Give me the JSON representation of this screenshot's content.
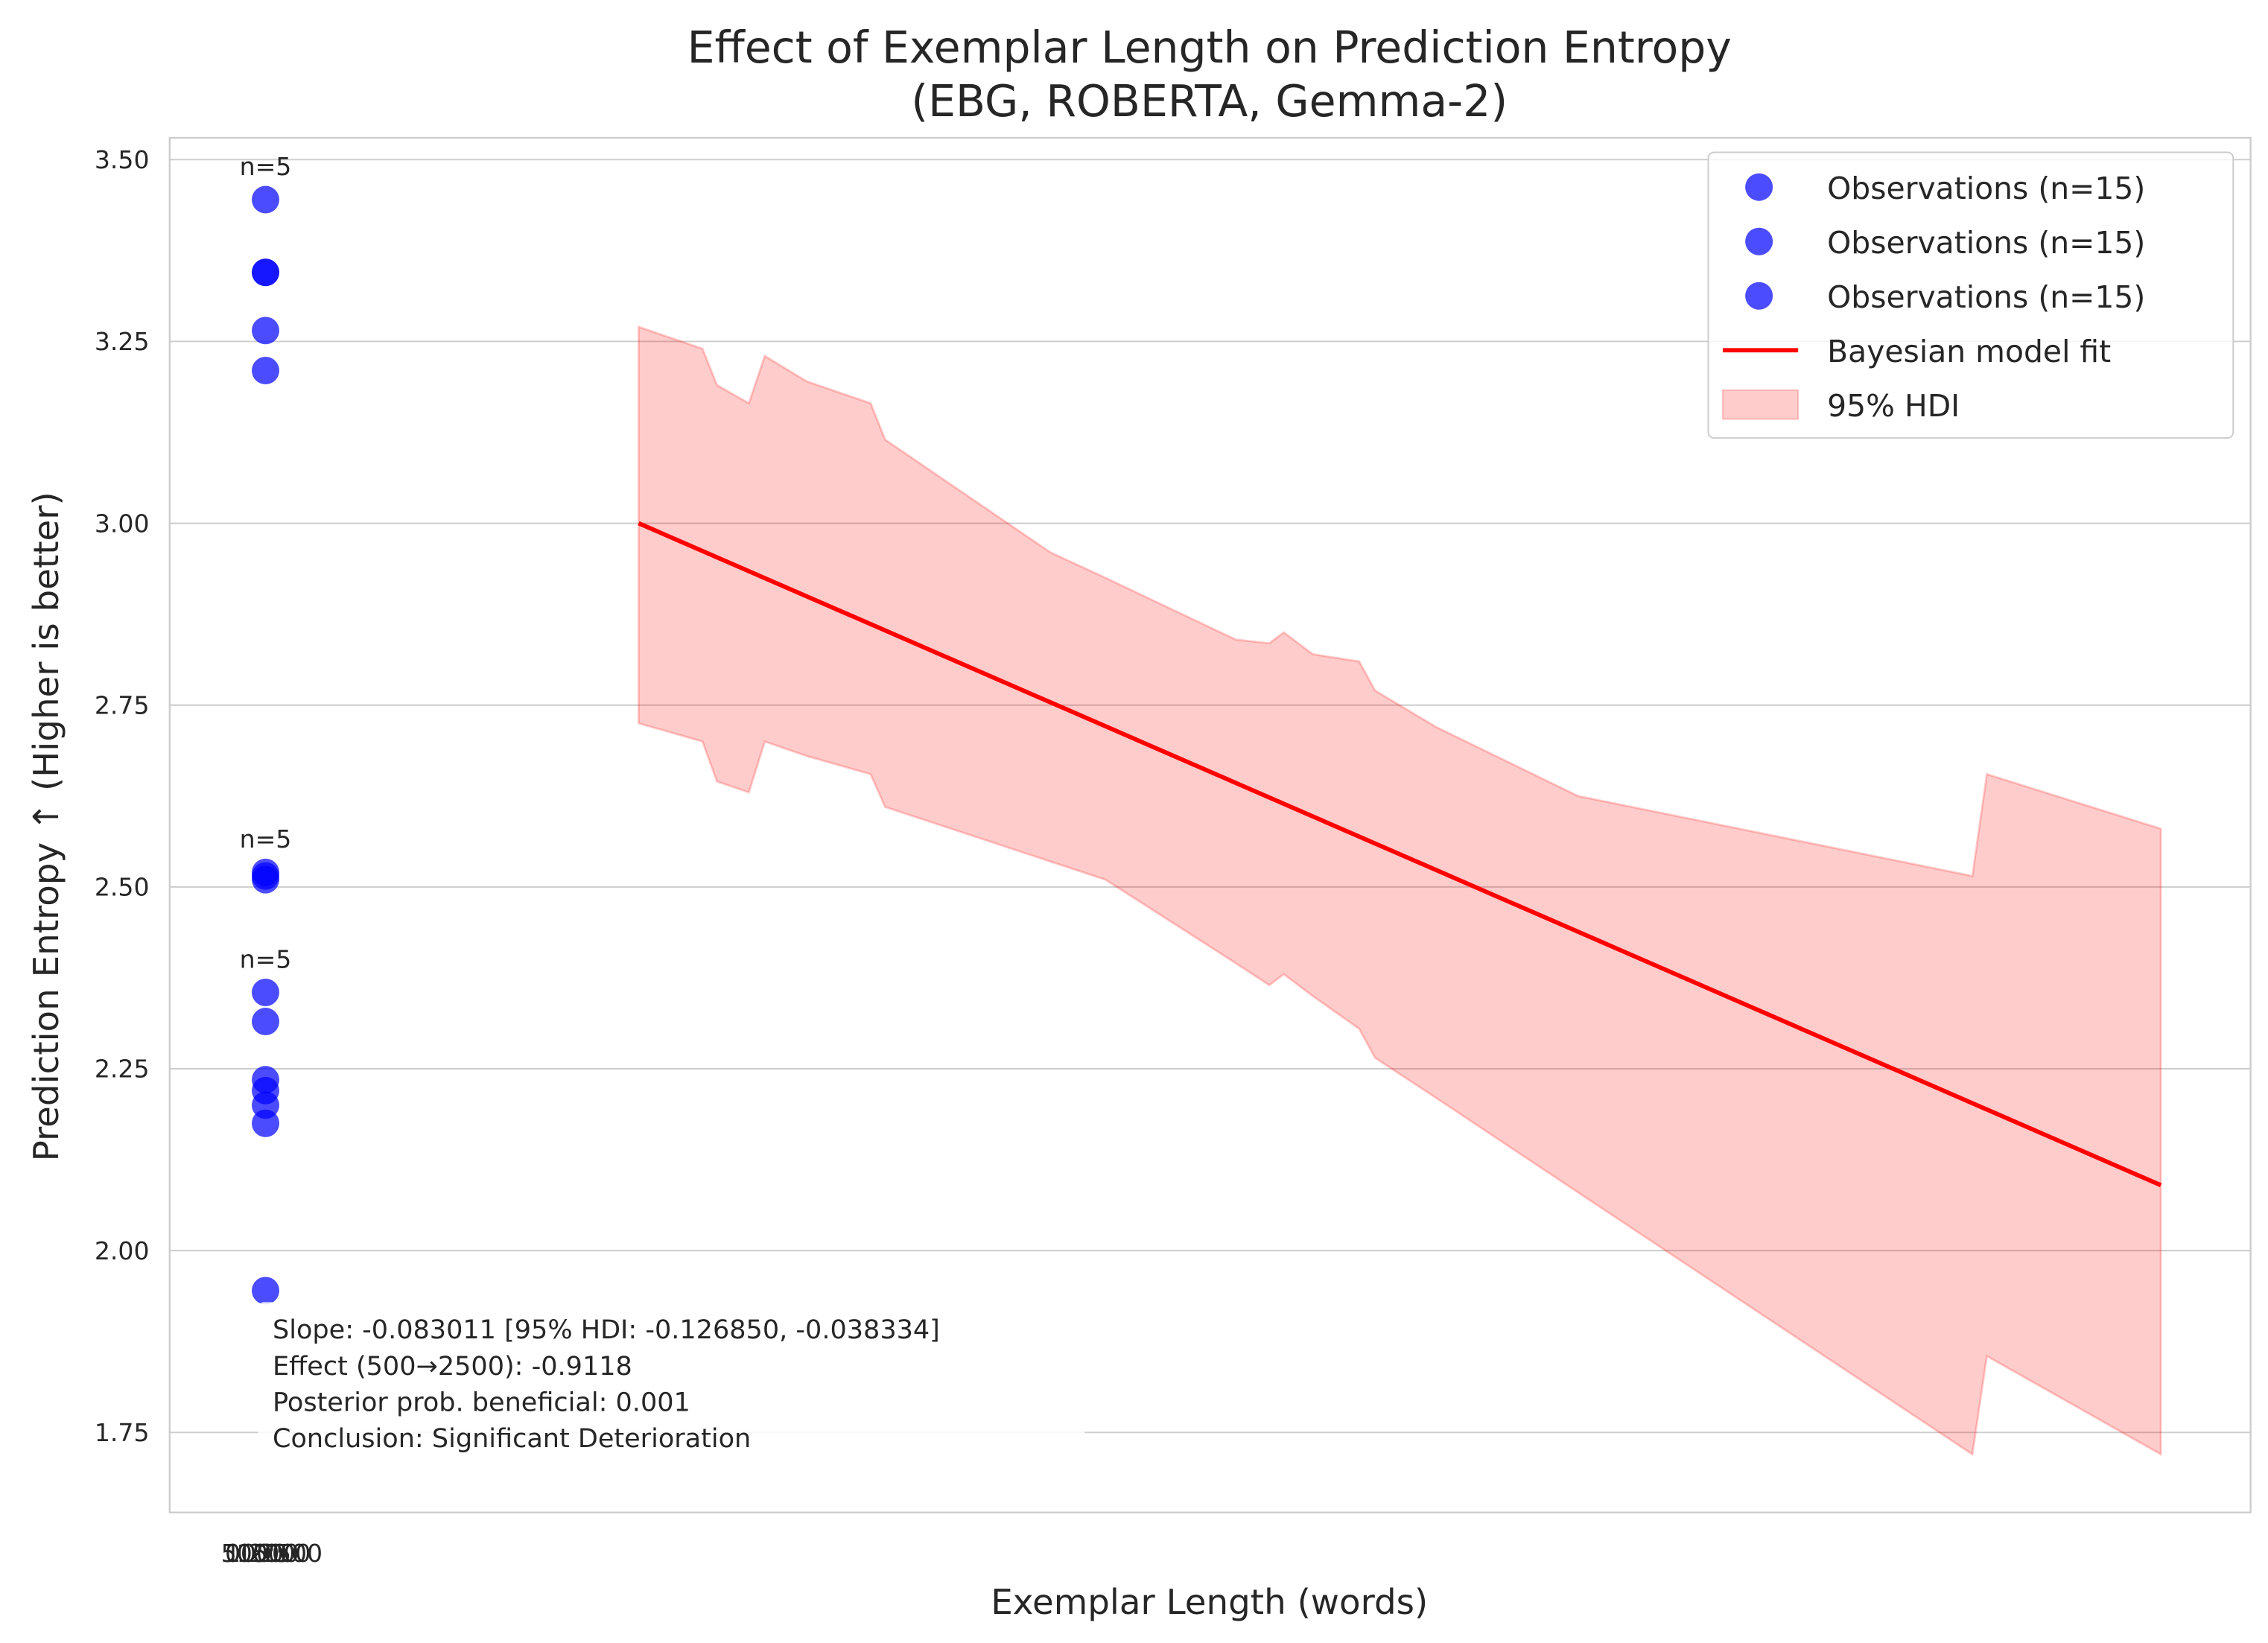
{
  "chart_data": {
    "type": "scatter",
    "title": "Effect of Exemplar Length on Prediction Entropy",
    "subtitle": "(EBG, ROBERTA, Gemma-2)",
    "x_label": "Exemplar Length (words)",
    "y_label": "Prediction Entropy ↑ (Higher is better)",
    "xlim": [
      -2700,
      86300
    ],
    "xticks": [
      0,
      500,
      1000,
      1500,
      2000,
      2500
    ],
    "ylim": [
      1.64,
      3.53
    ],
    "yticks": [
      1.75,
      {
        "value": 2.0,
        "label": "2.00"
      },
      2.25,
      {
        "value": 2.5,
        "label": "2.50"
      },
      2.75,
      {
        "value": 3.0,
        "label": "3.00"
      },
      3.25,
      {
        "value": 3.5,
        "label": "3.50"
      }
    ],
    "grid": true,
    "legend": "upper right",
    "series": [
      {
        "name": "Observations (n=15)",
        "color": "#0000ff",
        "annotation": "n=5",
        "x": [
          1400,
          1400,
          1400,
          1400,
          1400
        ],
        "values": [
          3.445,
          3.345,
          3.345,
          3.265,
          3.21
        ]
      },
      {
        "name": "Observations (n=15)",
        "color": "#0000ff",
        "annotation": "n=5",
        "x": [
          1400,
          1400,
          1400,
          1400,
          1400
        ],
        "values": [
          2.52,
          2.515,
          2.51,
          2.2,
          1.945
        ]
      },
      {
        "name": "Observations (n=15)",
        "color": "#0000ff",
        "annotation": "n=5",
        "x": [
          1400,
          1400,
          1400,
          1400,
          1400
        ],
        "values": [
          2.355,
          2.315,
          2.235,
          2.22,
          2.175
        ]
      }
    ],
    "fit": {
      "name": "Bayesian model fit",
      "color": "#ff0000",
      "x": [
        17360,
        82460
      ],
      "values": [
        3.0,
        2.09
      ]
    },
    "hdi": {
      "name": "95% HDI",
      "color": "#ff0000",
      "x": [
        17360,
        20088,
        20708,
        22072,
        22754,
        24552,
        27280,
        27900,
        34968,
        37324,
        42904,
        44330,
        44950,
        46190,
        48174,
        48856,
        51460,
        57536,
        74400,
        75020,
        82460
      ],
      "upper": [
        3.27,
        3.24,
        3.19,
        3.165,
        3.23,
        3.195,
        3.165,
        3.115,
        2.96,
        2.925,
        2.84,
        2.835,
        2.85,
        2.82,
        2.81,
        2.77,
        2.72,
        2.625,
        2.515,
        2.655,
        2.58
      ],
      "lower": [
        2.725,
        2.7,
        2.645,
        2.63,
        2.7,
        2.68,
        2.655,
        2.61,
        2.535,
        2.51,
        2.395,
        2.365,
        2.38,
        2.35,
        2.305,
        2.265,
        2.21,
        2.08,
        1.72,
        1.855,
        1.72
      ]
    },
    "annotation_lines": [
      "Slope: -0.083011 [95% HDI: -0.126850, -0.038334]",
      "Effect (500→2500): -0.9118",
      "Posterior prob. beneficial: 0.001",
      "Conclusion: Significant Deterioration"
    ]
  }
}
